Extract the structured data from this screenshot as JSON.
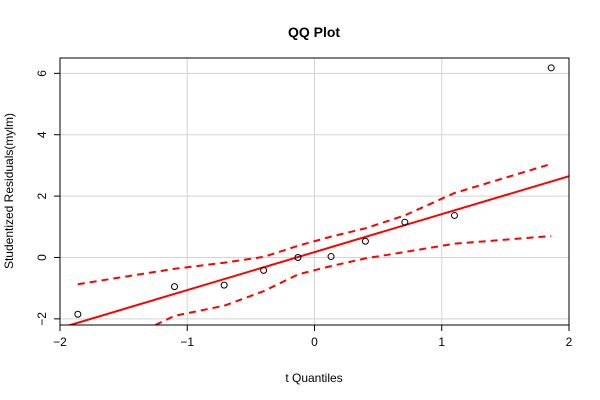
{
  "chart_data": {
    "type": "scatter",
    "title": "QQ Plot",
    "xlabel": "t Quantiles",
    "ylabel": "Studentized Residuals(mylm)",
    "xlim": [
      -2,
      2
    ],
    "ylim": [
      -2.2,
      6.5
    ],
    "x_ticks": [
      -2,
      -1,
      0,
      1,
      2
    ],
    "x_tick_labels": [
      "−2",
      "−1",
      "0",
      "1",
      "2"
    ],
    "y_ticks": [
      -2,
      0,
      2,
      4,
      6
    ],
    "y_tick_labels": [
      "−2",
      "0",
      "2",
      "4",
      "6"
    ],
    "grid": true,
    "points": {
      "x": [
        -1.86,
        -1.1,
        -0.71,
        -0.4,
        -0.13,
        0.13,
        0.4,
        0.71,
        1.1,
        1.86
      ],
      "y": [
        -1.85,
        -0.95,
        -0.9,
        -0.42,
        0.0,
        0.03,
        0.53,
        1.15,
        1.37,
        6.18
      ]
    },
    "reference_line": {
      "x": [
        -2.0,
        2.0
      ],
      "y": [
        -2.3,
        2.65
      ],
      "color": "#ff0000"
    },
    "confidence_band_upper": {
      "x": [
        -1.86,
        -1.1,
        -0.71,
        -0.4,
        -0.13,
        0.13,
        0.4,
        0.71,
        1.1,
        1.86
      ],
      "y": [
        -0.87,
        -0.37,
        -0.17,
        0.02,
        0.38,
        0.68,
        0.95,
        1.37,
        2.1,
        3.05
      ],
      "color": "#ff0000"
    },
    "confidence_band_lower": {
      "x": [
        -1.25,
        -1.1,
        -0.71,
        -0.4,
        -0.13,
        0.13,
        0.4,
        0.71,
        1.1,
        1.86
      ],
      "y": [
        -2.2,
        -1.9,
        -1.57,
        -1.1,
        -0.55,
        -0.28,
        -0.03,
        0.18,
        0.45,
        0.7
      ],
      "color": "#ff0000"
    }
  }
}
